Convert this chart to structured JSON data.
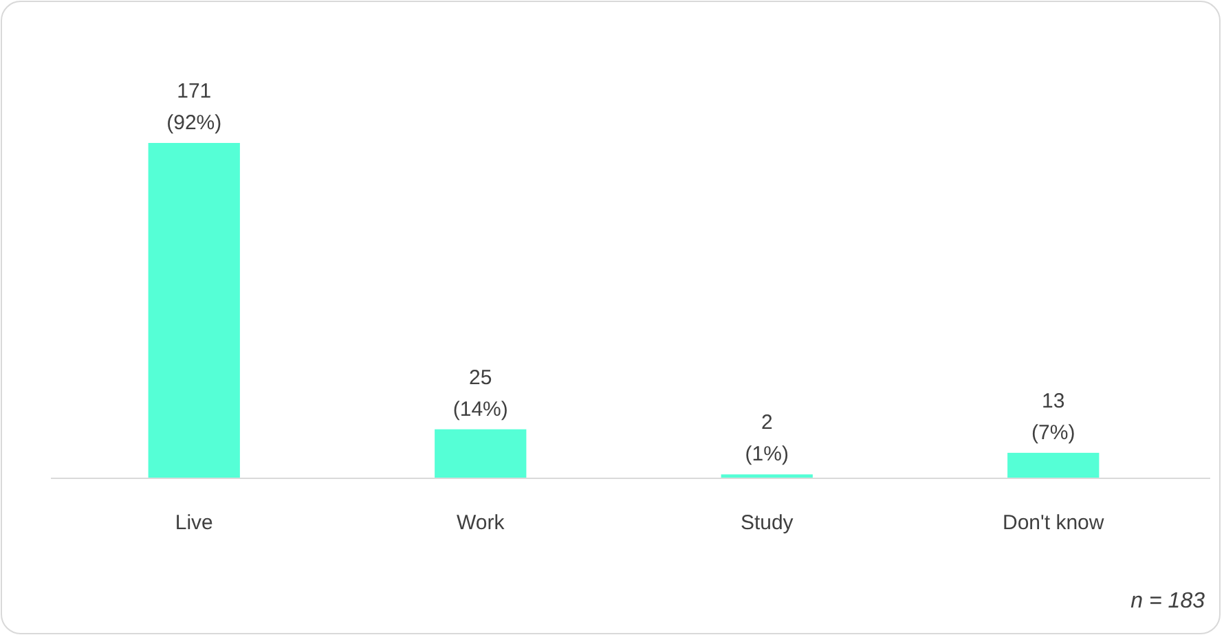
{
  "chart_data": {
    "type": "bar",
    "categories": [
      "Live",
      "Work",
      "Study",
      "Don't know"
    ],
    "values": [
      171,
      25,
      2,
      13
    ],
    "value_labels": [
      "171\n(92%)",
      "25\n(14%)",
      "2\n(1%)",
      "13\n(7%)"
    ],
    "color": "#55ffd6",
    "annotations": [
      "n = 183"
    ]
  }
}
